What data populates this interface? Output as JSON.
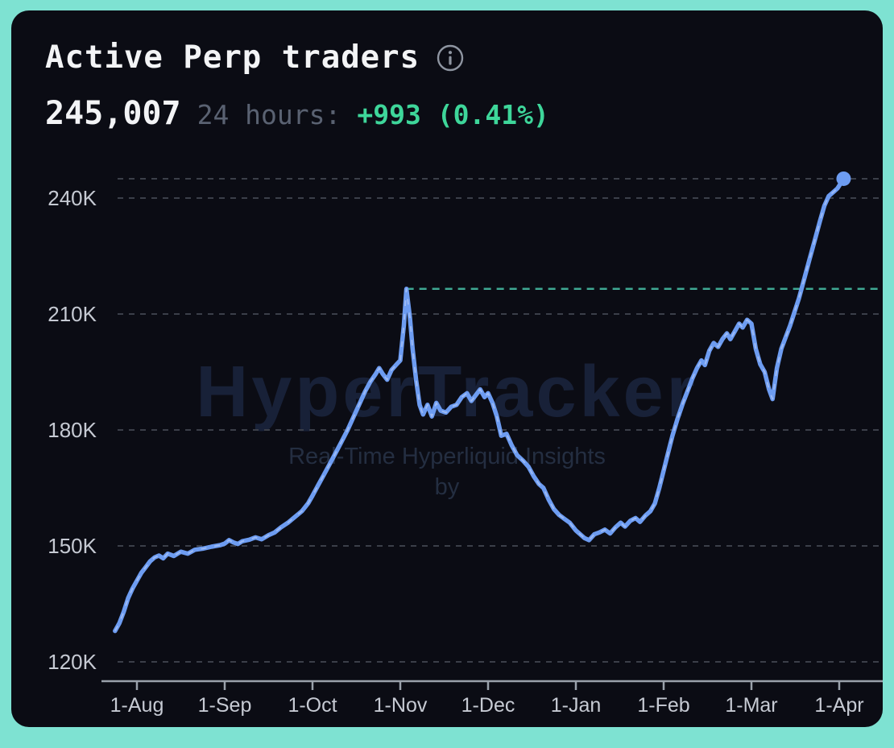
{
  "colors": {
    "frame": "#7ee2d2",
    "card_bg": "#0b0c14",
    "accent_line": "#6d9cf1",
    "line_overlay": "#dbe4fb",
    "grid": "#3b3f49",
    "axis": "#9aa1ab",
    "reference": "#3fa993",
    "positive": "#3ed69a",
    "muted_text": "#5a6272",
    "tick_text": "#c6cad3",
    "title_text": "#f3f4f6",
    "watermark_title": "#182138",
    "watermark_subtitle": "#242e41"
  },
  "header": {
    "title": "Active Perp traders"
  },
  "stats": {
    "current_value": "245,007",
    "period_label": "24 hours:",
    "change_label": "+993 (0.41%)"
  },
  "watermark": {
    "title": "HyperTracker",
    "subtitle": "Real-Time Hyperliquid Insights by"
  },
  "chart_data": {
    "type": "line",
    "title": "Active Perp traders",
    "x_unit": "months since 1-Aug",
    "x_tick_labels": [
      "1-Aug",
      "1-Sep",
      "1-Oct",
      "1-Nov",
      "1-Dec",
      "1-Jan",
      "1-Feb",
      "1-Mar",
      "1-Apr"
    ],
    "x_tick_positions": [
      0,
      1,
      2,
      3,
      4,
      5,
      6,
      7,
      8
    ],
    "y_ticks": [
      {
        "value": 120000,
        "label": "120K"
      },
      {
        "value": 150000,
        "label": "150K"
      },
      {
        "value": 180000,
        "label": "180K"
      },
      {
        "value": 210000,
        "label": "210K"
      },
      {
        "value": 240000,
        "label": "240K"
      }
    ],
    "ylim": [
      114000,
      250000
    ],
    "grid": "dashed-horizontal",
    "legend": "none",
    "latest_value_gridline": 245007,
    "reference_level": {
      "value": 216500,
      "from_x": 3.07,
      "style": "dashed-teal"
    },
    "last_point": {
      "x": 8.05,
      "value": 245007
    },
    "series": [
      {
        "name": "Active Perp traders",
        "points": [
          [
            -0.25,
            128000
          ],
          [
            -0.2,
            130000
          ],
          [
            -0.15,
            133000
          ],
          [
            -0.1,
            136500
          ],
          [
            -0.05,
            139000
          ],
          [
            0,
            141000
          ],
          [
            0.05,
            143000
          ],
          [
            0.1,
            144500
          ],
          [
            0.15,
            146000
          ],
          [
            0.2,
            147000
          ],
          [
            0.25,
            147500
          ],
          [
            0.3,
            146800
          ],
          [
            0.35,
            148000
          ],
          [
            0.42,
            147400
          ],
          [
            0.5,
            148500
          ],
          [
            0.58,
            148000
          ],
          [
            0.66,
            149000
          ],
          [
            0.75,
            149300
          ],
          [
            0.85,
            149800
          ],
          [
            0.95,
            150200
          ],
          [
            1,
            150600
          ],
          [
            1.05,
            151500
          ],
          [
            1.1,
            150900
          ],
          [
            1.15,
            150500
          ],
          [
            1.2,
            151200
          ],
          [
            1.28,
            151600
          ],
          [
            1.35,
            152200
          ],
          [
            1.42,
            151700
          ],
          [
            1.5,
            152800
          ],
          [
            1.57,
            153500
          ],
          [
            1.64,
            154800
          ],
          [
            1.72,
            156000
          ],
          [
            1.8,
            157500
          ],
          [
            1.88,
            159000
          ],
          [
            1.95,
            161000
          ],
          [
            2,
            163000
          ],
          [
            2.06,
            165500
          ],
          [
            2.12,
            168000
          ],
          [
            2.18,
            170500
          ],
          [
            2.25,
            173500
          ],
          [
            2.32,
            176500
          ],
          [
            2.4,
            180000
          ],
          [
            2.47,
            183500
          ],
          [
            2.54,
            187000
          ],
          [
            2.6,
            190000
          ],
          [
            2.66,
            192500
          ],
          [
            2.72,
            194500
          ],
          [
            2.76,
            196000
          ],
          [
            2.8,
            194500
          ],
          [
            2.85,
            193000
          ],
          [
            2.9,
            195500
          ],
          [
            2.95,
            196800
          ],
          [
            3,
            198000
          ],
          [
            3.04,
            207000
          ],
          [
            3.07,
            216500
          ],
          [
            3.11,
            209000
          ],
          [
            3.14,
            201000
          ],
          [
            3.18,
            193000
          ],
          [
            3.22,
            186500
          ],
          [
            3.26,
            184000
          ],
          [
            3.31,
            186500
          ],
          [
            3.36,
            183500
          ],
          [
            3.41,
            187000
          ],
          [
            3.46,
            185000
          ],
          [
            3.52,
            184500
          ],
          [
            3.58,
            186000
          ],
          [
            3.64,
            186500
          ],
          [
            3.7,
            188500
          ],
          [
            3.76,
            189500
          ],
          [
            3.81,
            187500
          ],
          [
            3.86,
            189000
          ],
          [
            3.91,
            190500
          ],
          [
            3.96,
            188500
          ],
          [
            4,
            189500
          ],
          [
            4.05,
            187000
          ],
          [
            4.1,
            183500
          ],
          [
            4.15,
            178500
          ],
          [
            4.21,
            179000
          ],
          [
            4.27,
            176000
          ],
          [
            4.33,
            173500
          ],
          [
            4.4,
            172000
          ],
          [
            4.46,
            170500
          ],
          [
            4.52,
            168000
          ],
          [
            4.58,
            166000
          ],
          [
            4.63,
            165000
          ],
          [
            4.69,
            162000
          ],
          [
            4.75,
            159500
          ],
          [
            4.81,
            158000
          ],
          [
            4.87,
            157000
          ],
          [
            4.93,
            156000
          ],
          [
            5,
            154000
          ],
          [
            5.05,
            153000
          ],
          [
            5.1,
            152000
          ],
          [
            5.15,
            151500
          ],
          [
            5.21,
            153000
          ],
          [
            5.27,
            153500
          ],
          [
            5.33,
            154200
          ],
          [
            5.39,
            153200
          ],
          [
            5.45,
            154800
          ],
          [
            5.51,
            156000
          ],
          [
            5.56,
            155000
          ],
          [
            5.62,
            156500
          ],
          [
            5.68,
            157200
          ],
          [
            5.73,
            156200
          ],
          [
            5.79,
            157800
          ],
          [
            5.85,
            159000
          ],
          [
            5.9,
            161000
          ],
          [
            5.95,
            165000
          ],
          [
            6,
            169500
          ],
          [
            6.05,
            174000
          ],
          [
            6.1,
            178500
          ],
          [
            6.16,
            183000
          ],
          [
            6.22,
            187000
          ],
          [
            6.28,
            190500
          ],
          [
            6.33,
            193500
          ],
          [
            6.38,
            196000
          ],
          [
            6.43,
            198000
          ],
          [
            6.47,
            196800
          ],
          [
            6.52,
            200500
          ],
          [
            6.57,
            202500
          ],
          [
            6.62,
            201500
          ],
          [
            6.67,
            203500
          ],
          [
            6.72,
            205000
          ],
          [
            6.76,
            203500
          ],
          [
            6.81,
            205500
          ],
          [
            6.86,
            207500
          ],
          [
            6.9,
            206500
          ],
          [
            6.95,
            208500
          ],
          [
            7,
            207500
          ],
          [
            7.05,
            201000
          ],
          [
            7.1,
            197000
          ],
          [
            7.15,
            195000
          ],
          [
            7.2,
            190500
          ],
          [
            7.24,
            188000
          ],
          [
            7.29,
            196000
          ],
          [
            7.34,
            201000
          ],
          [
            7.39,
            204000
          ],
          [
            7.44,
            207000
          ],
          [
            7.49,
            210500
          ],
          [
            7.54,
            214000
          ],
          [
            7.6,
            219000
          ],
          [
            7.66,
            224000
          ],
          [
            7.72,
            229000
          ],
          [
            7.78,
            234000
          ],
          [
            7.83,
            238000
          ],
          [
            7.88,
            240500
          ],
          [
            7.93,
            241500
          ],
          [
            7.98,
            242500
          ],
          [
            8.05,
            245007
          ]
        ]
      }
    ]
  }
}
